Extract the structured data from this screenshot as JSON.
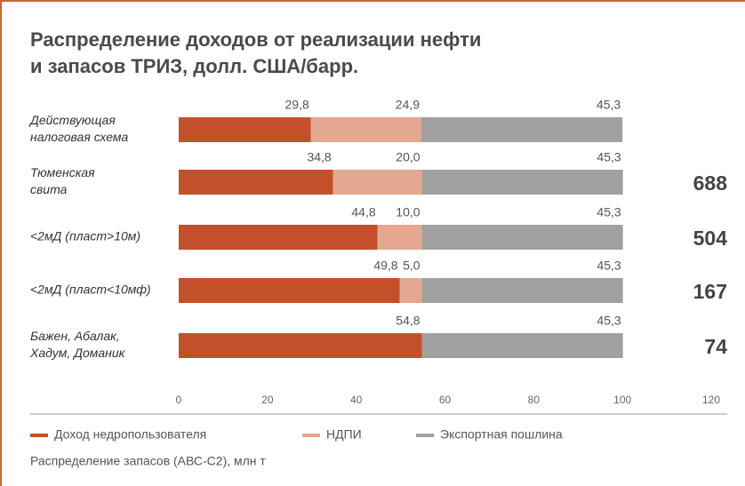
{
  "chart_data": {
    "type": "stacked_barh",
    "title": [
      "Распределение доходов от реализации нефти",
      "и запасов ТРИЗ, долл. США/барр."
    ],
    "categories": [
      [
        "Действующая",
        "налоговая схема"
      ],
      [
        "Тюменская",
        "свита"
      ],
      [
        "<2мД (пласт>10м)"
      ],
      [
        "<2мД (пласт<10мф)"
      ],
      [
        "Бажен, Абалак,",
        "Хадум, Доманик"
      ]
    ],
    "series": [
      {
        "name": "Доход недропользователя",
        "color": "#c4502b",
        "values": [
          29.8,
          34.8,
          44.8,
          49.8,
          54.8
        ],
        "value_labels": [
          "29,8",
          "34,8",
          "44,8",
          "49,8",
          "54,8"
        ]
      },
      {
        "name": "НДПИ",
        "color": "#e3a88e",
        "values": [
          24.9,
          20.0,
          10.0,
          5.0,
          null
        ],
        "value_labels": [
          "24,9",
          "20,0",
          "10,0",
          "5,0",
          null
        ]
      },
      {
        "name": "Экспортная пошлина",
        "color": "#a0a0a0",
        "values": [
          45.3,
          45.3,
          45.3,
          45.3,
          45.3
        ],
        "value_labels": [
          "45,3",
          "45,3",
          "45,3",
          "45,3",
          "45,3"
        ]
      }
    ],
    "reserves": {
      "label": "Распределение запасов (АВС-С2), млн т",
      "values": [
        null,
        688,
        504,
        167,
        74
      ]
    },
    "xlim": [
      0,
      120
    ],
    "xticks": [
      0,
      20,
      40,
      60,
      80,
      100,
      120
    ],
    "legend": "bottom"
  }
}
